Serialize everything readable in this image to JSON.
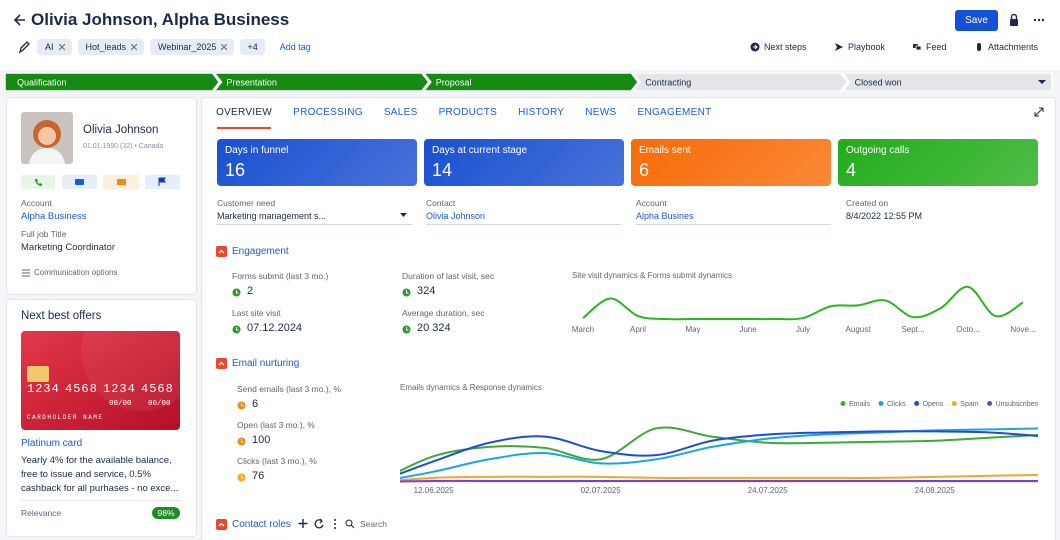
{
  "header": {
    "title": "Olivia Johnson, Alpha Business",
    "save": "Save",
    "tags": [
      "AI",
      "Hot_leads",
      "Webinar_2025"
    ],
    "more_tags": "+4",
    "add_tag": "Add tag",
    "actions": [
      "Next steps",
      "Playbook",
      "Feed",
      "Attachments"
    ]
  },
  "stages": [
    {
      "name": "Qualification",
      "done": true
    },
    {
      "name": "Presentation",
      "done": true
    },
    {
      "name": "Proposal",
      "done": true
    },
    {
      "name": "Contracting",
      "done": false
    },
    {
      "name": "Closed won",
      "done": false
    }
  ],
  "profile": {
    "name": "Olivia Johnson",
    "details": "01.01.1990 (32) • Canada",
    "account_label": "Account",
    "account": "Alpha Business",
    "job_label": "Full job Title",
    "job": "Marketing Coordinator",
    "communication": "Communication options"
  },
  "offers": {
    "title": "Next best offers",
    "card_number": [
      "1234",
      "4568",
      "1234",
      "4568"
    ],
    "cardholder": "CARDHOLDER NAME",
    "expiry": [
      "00/00",
      "00/00"
    ],
    "name": "Platinum card",
    "description": "Yearly 4% for the available balance, free to issue and service, 0.5% cashback for all purhases - no exce...",
    "relevance_label": "Relevance",
    "relevance": {
      "value": 98,
      "label": "98%"
    }
  },
  "tabs": [
    "OVERVIEW",
    "PROCESSING",
    "SALES",
    "PRODUCTS",
    "HISTORY",
    "NEWS",
    "ENGAGEMENT"
  ],
  "active_tab": 0,
  "kpis": [
    {
      "label": "Days in funnel",
      "value": 16,
      "color": "#1a4fd0"
    },
    {
      "label": "Days at current stage",
      "value": 14,
      "color": "#1a4fd0"
    },
    {
      "label": "Emails sent",
      "value": 6,
      "color": "#f86b06"
    },
    {
      "label": "Outgoing calls",
      "value": 4,
      "color": "#22ac1b"
    }
  ],
  "fields": [
    {
      "label": "Customer need",
      "value": "Marketing management s..."
    },
    {
      "label": "Contact",
      "value": "Olivia Johnson"
    },
    {
      "label": "Account",
      "value": "Alpha Busines"
    },
    {
      "label": "Created on",
      "value": "8/4/2022 12:55 PM"
    }
  ],
  "engagement": {
    "title": "Engagement",
    "metrics": [
      {
        "label": "Forms submit (last 3 mo.)",
        "value": 2
      },
      {
        "label": "Last site visit",
        "value": "07.12.2024"
      },
      {
        "label": "Duration of last visit, sec",
        "value": 324
      },
      {
        "label": "Average duration, sec",
        "value": "20 324"
      }
    ]
  },
  "email_nurturing": {
    "title": "Email nurturing",
    "metrics": [
      {
        "label": "Send emails (last 3 mo.), %",
        "value": 6
      },
      {
        "label": "Open (last 3 mo.), %",
        "value": 100
      },
      {
        "label": "Clicks (last 3 mo.), %",
        "value": 76
      }
    ]
  },
  "contact_roles": {
    "title": "Contact roles",
    "search": "Search"
  },
  "chart_data": [
    {
      "type": "line",
      "title": "Site visit dynamics & Forms submit dynamics",
      "categories": [
        "March",
        null,
        "April",
        null,
        "May",
        null,
        "June",
        null,
        "July",
        null,
        "August",
        null,
        "Sept...",
        null,
        "Octo...",
        null,
        "Nove..."
      ],
      "series": [
        {
          "color": "#2bb51d",
          "values": [
            2,
            22,
            4,
            1,
            1,
            1,
            1,
            1,
            2,
            14,
            15,
            20,
            3,
            12,
            34,
            4,
            18
          ]
        }
      ],
      "ylim": [
        0,
        40
      ]
    },
    {
      "type": "line",
      "title": "Emails dynamics & Response dynamics",
      "categories": [
        null,
        "12.06.2025",
        null,
        null,
        "02.07.2025",
        null,
        null,
        "24.07.2025",
        null,
        null,
        "24.08.2025",
        null,
        null
      ],
      "series": [
        {
          "name": "Emails",
          "color": "#3aaa35",
          "values": [
            0,
            25,
            34,
            33,
            22,
            52,
            44,
            38,
            38,
            39,
            40,
            43,
            46
          ]
        },
        {
          "name": "Clicks",
          "color": "#1ea3e3",
          "values": [
            0,
            10,
            22,
            28,
            18,
            22,
            34,
            42,
            46,
            48,
            50,
            51,
            52
          ]
        },
        {
          "name": "Opens",
          "color": "#1d4fd6",
          "values": [
            0,
            20,
            38,
            44,
            30,
            26,
            40,
            46,
            48,
            49,
            49,
            48,
            44
          ]
        },
        {
          "name": "Spam",
          "color": "#f5a623",
          "values": [
            0,
            4,
            5,
            5,
            5,
            4,
            4,
            4,
            4,
            4,
            5,
            6,
            7
          ]
        },
        {
          "name": "Unsubscribes",
          "color": "#7b3fd1",
          "values": [
            0,
            1,
            1,
            1,
            1,
            1,
            1,
            1,
            1,
            1,
            1,
            1,
            1
          ]
        }
      ],
      "ylim": [
        0,
        62
      ],
      "legend": "top-right"
    }
  ]
}
